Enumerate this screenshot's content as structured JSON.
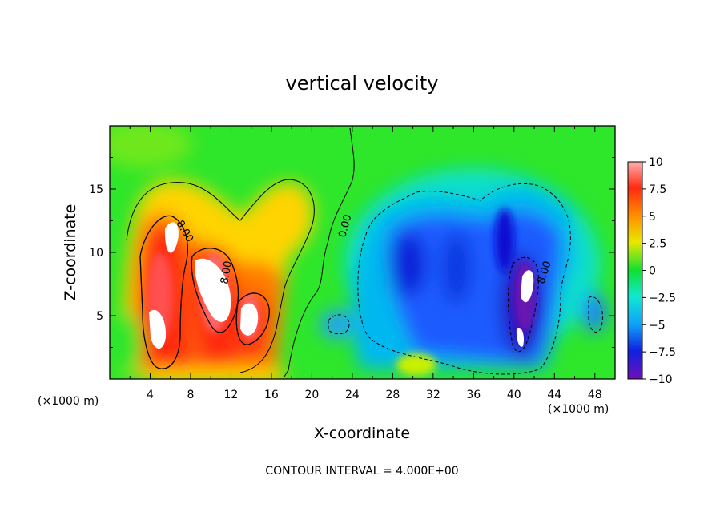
{
  "chart_data": {
    "type": "heatmap",
    "title": "vertical velocity",
    "xlabel": "X-coordinate",
    "ylabel": "Z-coordinate",
    "x_unit": "(×1000 m)",
    "x_unit_right": "(×1000 m)",
    "xlim": [
      0,
      50
    ],
    "ylim": [
      0,
      20
    ],
    "x_ticks": [
      4,
      8,
      12,
      16,
      20,
      24,
      28,
      32,
      36,
      40,
      44,
      48
    ],
    "y_ticks": [
      5,
      10,
      15
    ],
    "colorbar": {
      "ticks": [
        10,
        7.5,
        5,
        2.5,
        0,
        -2.5,
        -5,
        -7.5,
        -10
      ],
      "tick_labels": [
        "10",
        "7.5",
        "5",
        "2.5",
        "0",
        "−2.5",
        "−5",
        "−7.5",
        "−10"
      ],
      "range": [
        -10,
        10
      ]
    },
    "contour_labels": [
      "8.00",
      "8.00",
      "0.00",
      "8.00"
    ],
    "footer": "CONTOUR INTERVAL = 4.000E+00",
    "features": [
      {
        "x": 6,
        "z": 9,
        "value": 10
      },
      {
        "x": 10.5,
        "z": 7.5,
        "value": 10
      },
      {
        "x": 14,
        "z": 5,
        "value": 9
      },
      {
        "x": 17,
        "z": 13,
        "value": 5
      },
      {
        "x": 31,
        "z": 9,
        "value": -7.5
      },
      {
        "x": 36,
        "z": 8,
        "value": -6
      },
      {
        "x": 41.5,
        "z": 7,
        "value": -10
      }
    ]
  }
}
